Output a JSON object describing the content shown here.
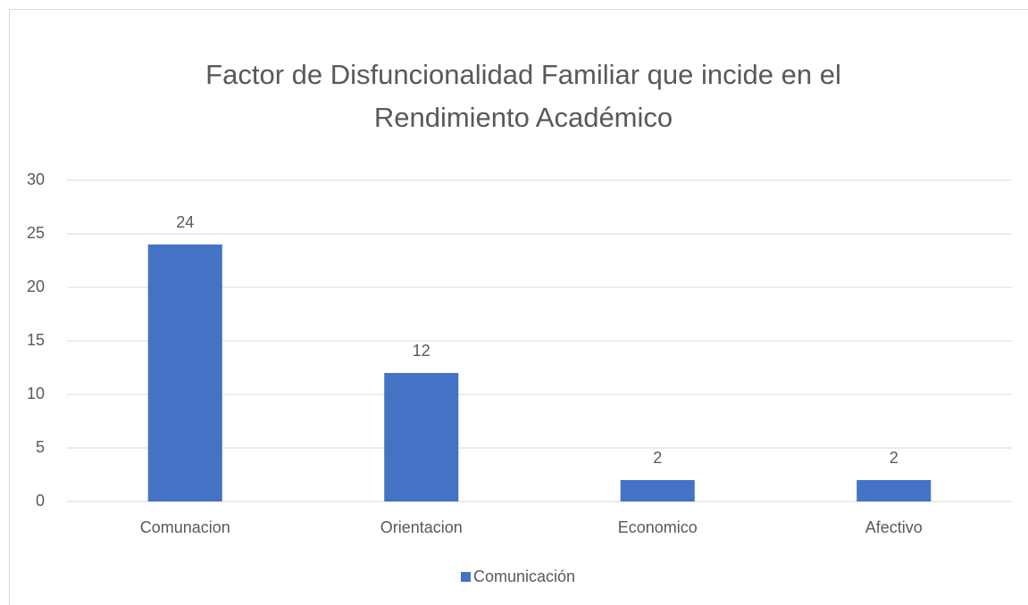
{
  "chart_data": {
    "type": "bar",
    "title": [
      "Factor de Disfuncionalidad Familiar que incide en el",
      "Rendimiento Académico"
    ],
    "categories": [
      "Comunacion",
      "Orientacion",
      "Economico",
      "Afectivo"
    ],
    "series": [
      {
        "name": "Comunicación",
        "color": "#4472c4",
        "values": [
          24,
          12,
          2,
          2
        ]
      }
    ],
    "ylim": [
      0,
      30
    ],
    "yticks": [
      0,
      5,
      10,
      15,
      20,
      25,
      30
    ],
    "grid": true,
    "legend": "bottom"
  }
}
